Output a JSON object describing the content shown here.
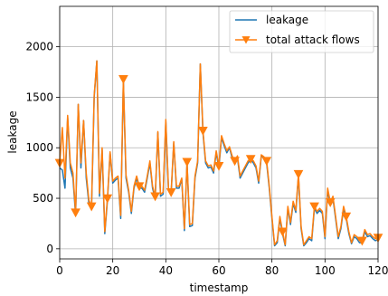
{
  "chart_data": {
    "type": "line",
    "title": "",
    "xlabel": "timestamp",
    "ylabel": "leakage",
    "xlim": [
      0,
      120
    ],
    "ylim": [
      -100,
      2400
    ],
    "xticks": [
      0,
      20,
      40,
      60,
      80,
      100,
      120
    ],
    "yticks": [
      0,
      500,
      1000,
      1500,
      2000
    ],
    "grid": true,
    "legend_position": "top-right",
    "series": [
      {
        "name": "leakage",
        "color": "#1f77b4",
        "marker": "none",
        "x": [
          0,
          1,
          2,
          3,
          4,
          5,
          6,
          7,
          8,
          9,
          10,
          11,
          12,
          13,
          14,
          15,
          16,
          17,
          18,
          19,
          20,
          21,
          22,
          23,
          24,
          25,
          26,
          27,
          28,
          29,
          30,
          31,
          32,
          33,
          34,
          35,
          36,
          37,
          38,
          39,
          40,
          41,
          42,
          43,
          44,
          45,
          46,
          47,
          48,
          49,
          50,
          51,
          52,
          53,
          54,
          55,
          56,
          57,
          58,
          59,
          60,
          61,
          62,
          63,
          64,
          65,
          66,
          67,
          68,
          69,
          70,
          71,
          72,
          73,
          74,
          75,
          76,
          77,
          78,
          79,
          80,
          81,
          82,
          83,
          84,
          85,
          86,
          87,
          88,
          89,
          90,
          91,
          92,
          93,
          94,
          95,
          96,
          97,
          98,
          99,
          100,
          101,
          102,
          103,
          104,
          105,
          106,
          107,
          108,
          109,
          110,
          111,
          112,
          113,
          114,
          115,
          116,
          117,
          118,
          119,
          120
        ],
        "y": [
          800,
          780,
          600,
          1300,
          800,
          700,
          330,
          1430,
          800,
          1270,
          700,
          450,
          400,
          1500,
          1860,
          520,
          980,
          150,
          480,
          950,
          650,
          680,
          700,
          300,
          1670,
          700,
          560,
          350,
          600,
          700,
          600,
          600,
          560,
          700,
          850,
          600,
          500,
          1150,
          520,
          540,
          1260,
          580,
          540,
          1050,
          600,
          600,
          690,
          180,
          850,
          220,
          230,
          700,
          850,
          1830,
          1150,
          850,
          800,
          810,
          750,
          950,
          800,
          1100,
          1020,
          950,
          1000,
          900,
          850,
          900,
          700,
          750,
          800,
          850,
          880,
          850,
          800,
          650,
          920,
          900,
          850,
          600,
          300,
          30,
          60,
          300,
          150,
          30,
          400,
          240,
          450,
          360,
          720,
          200,
          30,
          60,
          100,
          80,
          400,
          350,
          380,
          350,
          100,
          580,
          440,
          500,
          300,
          100,
          200,
          400,
          300,
          150,
          50,
          120,
          100,
          60,
          60,
          170,
          120,
          130,
          100,
          80,
          90
        ]
      },
      {
        "name": "total attack flows",
        "color": "#ff7f0e",
        "marker": "triangle-down",
        "marker_every": 6,
        "x": [
          0,
          1,
          2,
          3,
          4,
          5,
          6,
          7,
          8,
          9,
          10,
          11,
          12,
          13,
          14,
          15,
          16,
          17,
          18,
          19,
          20,
          21,
          22,
          23,
          24,
          25,
          26,
          27,
          28,
          29,
          30,
          31,
          32,
          33,
          34,
          35,
          36,
          37,
          38,
          39,
          40,
          41,
          42,
          43,
          44,
          45,
          46,
          47,
          48,
          49,
          50,
          51,
          52,
          53,
          54,
          55,
          56,
          57,
          58,
          59,
          60,
          61,
          62,
          63,
          64,
          65,
          66,
          67,
          68,
          69,
          70,
          71,
          72,
          73,
          74,
          75,
          76,
          77,
          78,
          79,
          80,
          81,
          82,
          83,
          84,
          85,
          86,
          87,
          88,
          89,
          90,
          91,
          92,
          93,
          94,
          95,
          96,
          97,
          98,
          99,
          100,
          101,
          102,
          103,
          104,
          105,
          106,
          107,
          108,
          109,
          110,
          111,
          112,
          113,
          114,
          115,
          116,
          117,
          118,
          119,
          120
        ],
        "y": [
          850,
          1200,
          700,
          1320,
          850,
          750,
          360,
          1430,
          850,
          1270,
          750,
          480,
          420,
          1520,
          1860,
          550,
          1000,
          170,
          500,
          960,
          670,
          700,
          720,
          330,
          1680,
          730,
          580,
          370,
          620,
          720,
          620,
          620,
          580,
          720,
          870,
          620,
          520,
          1160,
          540,
          560,
          1280,
          600,
          560,
          1060,
          620,
          620,
          700,
          200,
          860,
          240,
          250,
          720,
          870,
          1830,
          1170,
          870,
          820,
          830,
          770,
          970,
          820,
          1120,
          1040,
          970,
          1010,
          920,
          870,
          920,
          720,
          770,
          820,
          870,
          890,
          870,
          820,
          670,
          930,
          910,
          870,
          620,
          320,
          40,
          80,
          320,
          170,
          40,
          420,
          260,
          470,
          380,
          740,
          220,
          40,
          80,
          120,
          100,
          420,
          370,
          400,
          370,
          120,
          600,
          460,
          520,
          320,
          120,
          220,
          420,
          320,
          170,
          60,
          140,
          120,
          80,
          80,
          190,
          140,
          150,
          120,
          100,
          110
        ]
      }
    ]
  }
}
